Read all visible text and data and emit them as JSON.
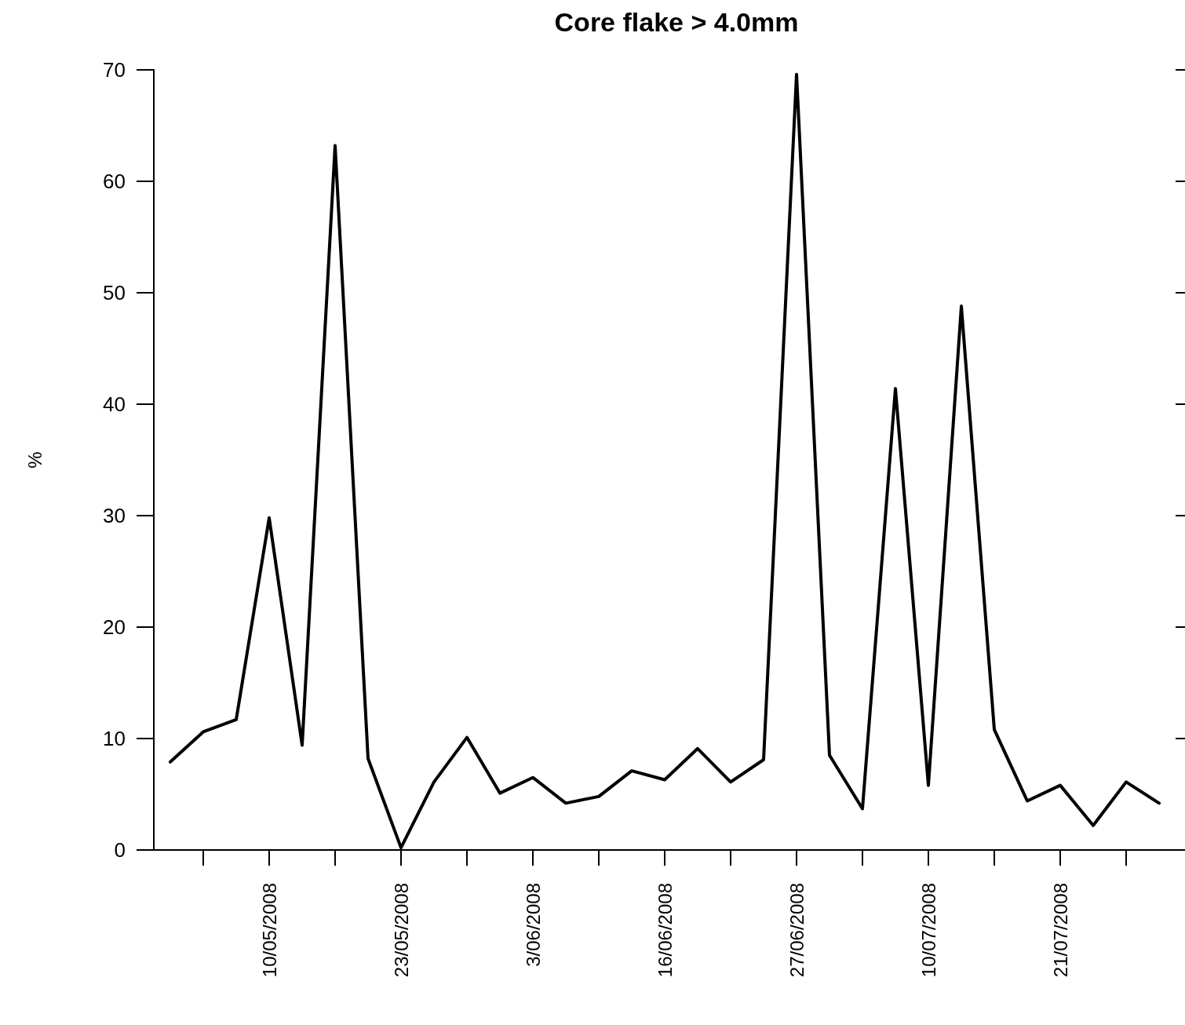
{
  "chart_data": {
    "type": "line",
    "title": "Core flake > 4.0mm",
    "ylabel": "%",
    "categories": [
      null,
      null,
      null,
      "10/05/2008",
      null,
      null,
      null,
      "23/05/2008",
      null,
      null,
      null,
      "3/06/2008",
      null,
      null,
      null,
      "16/06/2008",
      null,
      null,
      null,
      "27/06/2008",
      null,
      null,
      null,
      "10/07/2008",
      null,
      null,
      null,
      "21/07/2008",
      null,
      null,
      null
    ],
    "series": [
      {
        "color": "#000000",
        "values": [
          7.9,
          10.6,
          11.7,
          29.8,
          9.4,
          63.2,
          8.2,
          0.2,
          6.1,
          10.1,
          5.1,
          6.5,
          4.2,
          4.8,
          7.1,
          6.3,
          9.1,
          6.1,
          8.1,
          69.6,
          8.5,
          3.7,
          41.4,
          5.8,
          48.8,
          10.8,
          4.4,
          5.8,
          2.2,
          6.1,
          4.2
        ]
      }
    ],
    "ylim": [
      0,
      70
    ],
    "yticks": [
      0,
      10,
      20,
      30,
      40,
      50,
      60,
      70
    ],
    "grid": false,
    "marker": "none",
    "line_style": "solid"
  }
}
